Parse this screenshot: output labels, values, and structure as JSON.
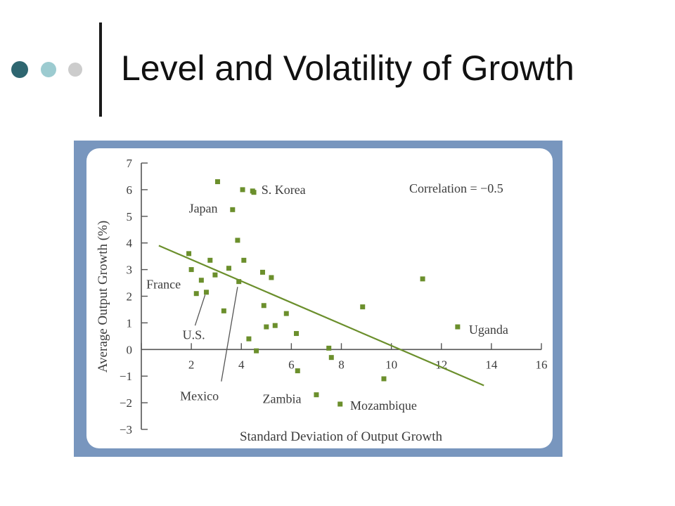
{
  "slide": {
    "title": "Level and Volatility of Growth",
    "bullet_colors": [
      "#2e6670",
      "#9ccbd0",
      "#cccccc"
    ]
  },
  "chart_data": {
    "type": "scatter",
    "title": "",
    "xlabel": "Standard Deviation of Output Growth",
    "ylabel": "Average Output Growth (%)",
    "xlim": [
      0,
      16
    ],
    "ylim": [
      -3,
      7
    ],
    "xticks": [
      2,
      4,
      6,
      8,
      10,
      12,
      14,
      16
    ],
    "yticks": [
      7,
      6,
      5,
      4,
      3,
      2,
      1,
      0,
      -1,
      -2,
      -3
    ],
    "ytick_labels": [
      "7",
      "6",
      "5",
      "4",
      "3",
      "2",
      "1",
      "0",
      "−1",
      "−2",
      "−3"
    ],
    "grid": false,
    "marker_color": "#6b8f2c",
    "annotation": "Correlation = −0.5",
    "trendline": {
      "x": [
        0.7,
        13.7
      ],
      "y": [
        3.9,
        -1.35
      ]
    },
    "points": [
      {
        "x": 1.9,
        "y": 3.6
      },
      {
        "x": 2.0,
        "y": 3.0
      },
      {
        "x": 2.2,
        "y": 2.1
      },
      {
        "x": 2.4,
        "y": 2.6
      },
      {
        "x": 2.6,
        "y": 2.15
      },
      {
        "x": 2.75,
        "y": 3.35
      },
      {
        "x": 2.95,
        "y": 2.8
      },
      {
        "x": 3.05,
        "y": 6.3
      },
      {
        "x": 3.3,
        "y": 1.45
      },
      {
        "x": 3.5,
        "y": 3.05
      },
      {
        "x": 3.65,
        "y": 5.25
      },
      {
        "x": 3.85,
        "y": 4.1
      },
      {
        "x": 3.9,
        "y": 2.55
      },
      {
        "x": 4.05,
        "y": 6.0
      },
      {
        "x": 4.1,
        "y": 3.35
      },
      {
        "x": 4.3,
        "y": 0.4
      },
      {
        "x": 4.45,
        "y": 5.95
      },
      {
        "x": 4.5,
        "y": 5.9
      },
      {
        "x": 4.6,
        "y": -0.05
      },
      {
        "x": 4.85,
        "y": 2.9
      },
      {
        "x": 4.9,
        "y": 1.65
      },
      {
        "x": 5.0,
        "y": 0.85
      },
      {
        "x": 5.2,
        "y": 2.7
      },
      {
        "x": 5.35,
        "y": 0.9
      },
      {
        "x": 5.8,
        "y": 1.35
      },
      {
        "x": 6.2,
        "y": 0.6
      },
      {
        "x": 6.25,
        "y": -0.8
      },
      {
        "x": 7.0,
        "y": -1.7
      },
      {
        "x": 7.5,
        "y": 0.05
      },
      {
        "x": 7.6,
        "y": -0.3
      },
      {
        "x": 7.95,
        "y": -2.05
      },
      {
        "x": 8.85,
        "y": 1.6
      },
      {
        "x": 9.7,
        "y": -1.1
      },
      {
        "x": 11.25,
        "y": 2.65
      },
      {
        "x": 12.65,
        "y": 0.85
      }
    ],
    "labels": [
      {
        "text": "S. Korea",
        "x": 4.8,
        "y": 6.0
      },
      {
        "text": "Japan",
        "x": 1.9,
        "y": 5.3
      },
      {
        "text": "France",
        "x": 0.2,
        "y": 2.45
      },
      {
        "text": "U.S.",
        "x": 1.65,
        "y": 0.55
      },
      {
        "text": "Mexico",
        "x": 1.55,
        "y": -1.75
      },
      {
        "text": "Zambia",
        "x": 4.85,
        "y": -1.85
      },
      {
        "text": "Mozambique",
        "x": 8.35,
        "y": -2.1
      },
      {
        "text": "Uganda",
        "x": 13.1,
        "y": 0.75
      }
    ],
    "leaders": [
      {
        "from": [
          2.55,
          2.05
        ],
        "to": [
          2.15,
          0.9
        ]
      },
      {
        "from": [
          3.85,
          2.35
        ],
        "to": [
          3.2,
          -1.2
        ]
      }
    ]
  }
}
